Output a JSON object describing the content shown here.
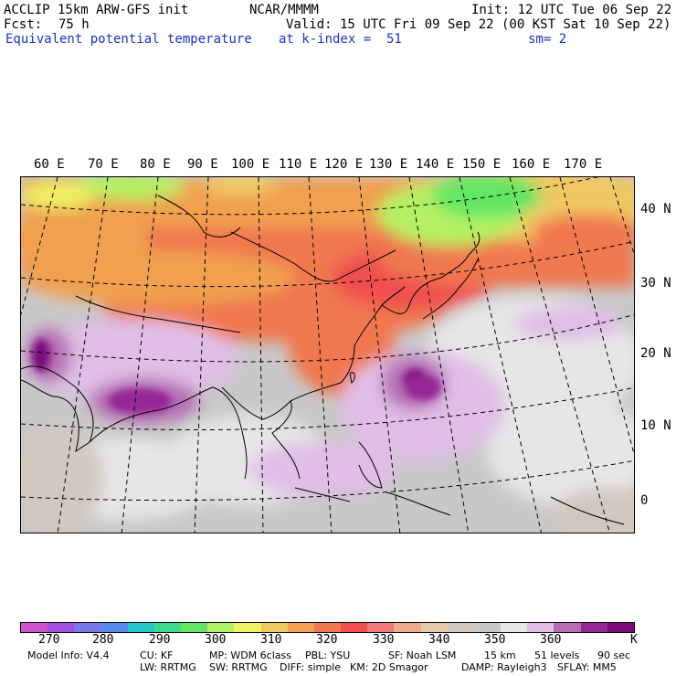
{
  "header": {
    "model": "ACCLIP 15km ARW-GFS init",
    "center": "NCAR/MMMM",
    "init": "Init: 12 UTC Tue 06 Sep 22",
    "fcst_label": "Fcst:",
    "fcst_value": "75 h",
    "valid": "Valid: 15 UTC Fri 09 Sep 22 (00 KST Sat 10 Sep 22)",
    "field": "Equivalent potential temperature",
    "level": "at k-index =  51",
    "smoothing": "sm= 2"
  },
  "map": {
    "lon_labels": [
      "60 E",
      "70 E",
      "80 E",
      "90 E",
      "100 E",
      "110 E",
      "120 E",
      "130 E",
      "140 E",
      "150 E",
      "160 E",
      "170 E"
    ],
    "lat_labels": [
      "40 N",
      "30 N",
      "20 N",
      "10 N",
      "0"
    ]
  },
  "colorbar": {
    "colors": [
      "#cc55cc",
      "#a050dc",
      "#7878e6",
      "#5a8cf0",
      "#28c8c8",
      "#3cdc8c",
      "#64e664",
      "#b4f064",
      "#f0f064",
      "#f0c864",
      "#f0a050",
      "#f07850",
      "#f05050",
      "#f07878",
      "#f0aa8c",
      "#e6c8aa",
      "#d2c8c0",
      "#c8c8c8",
      "#e6e6e6",
      "#e0bee6",
      "#b46eb4",
      "#962896",
      "#7a0a7a"
    ],
    "ticks": [
      "270",
      "280",
      "290",
      "300",
      "310",
      "320",
      "330",
      "340",
      "350",
      "360"
    ],
    "unit": "K"
  },
  "footer": {
    "line1": [
      "Model Info: V4.4",
      "CU: KF",
      "MP: WDM 6class",
      "PBL: YSU",
      "SF: Noah LSM",
      "15 km",
      "51 levels",
      "90 sec"
    ],
    "line2": [
      "LW: RRTMG",
      "SW: RRTMG",
      "DIFF: simple",
      "KM: 2D Smagor",
      "DAMP: Rayleigh3",
      "SFLAY: MM5"
    ]
  }
}
